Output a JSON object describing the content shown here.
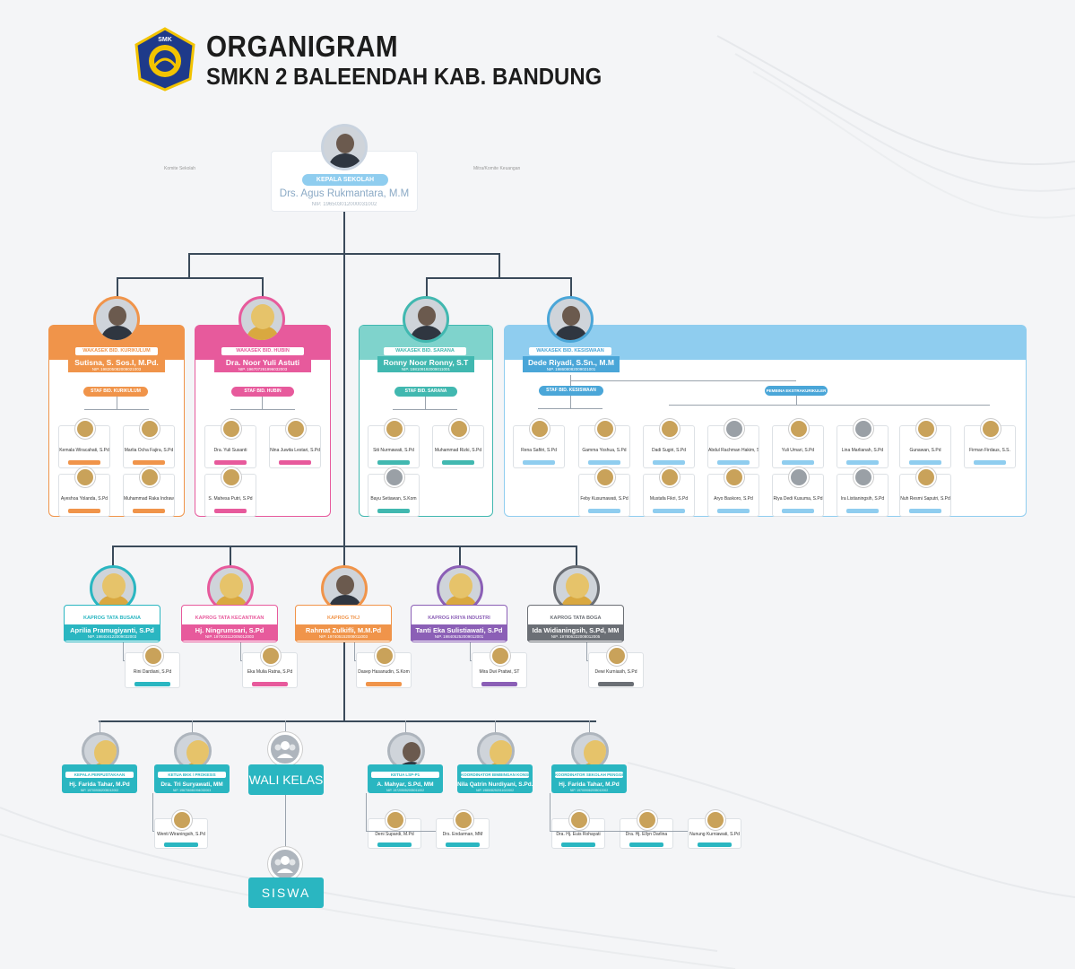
{
  "header": {
    "title": "ORGANIGRAM",
    "subtitle": "SMKN 2 BALEENDAH KAB. BANDUNG",
    "logo_text": "SMK"
  },
  "colors": {
    "orange": "#f0944a",
    "pink": "#e75a9c",
    "teal": "#41b8b0",
    "blue": "#4aa6d8",
    "lightblue": "#8fcdef",
    "purple": "#8b5fb6",
    "gray": "#6b6f75",
    "cyan": "#2ab6c1",
    "dark": "#3a4a5a"
  },
  "kepala": {
    "role": "KEPALA SEKOLAH",
    "name": "Drs. Agus Rukmantara, M.M",
    "nip": "NIP. 196503012000031002",
    "left_label": "Komite Sekolah",
    "right_label": "Mitra/Komite Keuangan"
  },
  "wakasek": [
    {
      "role": "WAKASEK BID. KURIKULUM",
      "name": "Sutisna, S. Sos.I, M.Pd.",
      "nip": "NIP. 198205082009021003",
      "staf": "STAF BID. KURIKULUM",
      "members": [
        {
          "name": "Kemala Wiracahati, S.Pd"
        },
        {
          "name": "Marlia Ocha Fajira, S.Pd"
        },
        {
          "name": "Ayeshoa Yolanda, S.Pd"
        },
        {
          "name": "Muhammad Raka Indrawan"
        }
      ]
    },
    {
      "role": "WAKASEK BID. HUBIN",
      "name": "Dra. Noor Yuli Astuti",
      "nip": "NIP. 196707261996032003",
      "staf": "STAF BID. HUBIN",
      "members": [
        {
          "name": "Dra. Yuli Susanti"
        },
        {
          "name": "Nina Juwita Lestari, S.Pd"
        },
        {
          "name": "S. Mahesa Putri, S.Pd"
        }
      ]
    },
    {
      "role": "WAKASEK BID. SARANA",
      "name": "Ronny Noor Ronny, S.T",
      "nip": "NIP. 198109192009011001",
      "staf": "STAF BID. SARANA",
      "members": [
        {
          "name": "Siti Nurmawati, S.Pd"
        },
        {
          "name": "Muhammad Rizki, S.Pd"
        },
        {
          "name": "Bayu Setiawan, S.Kom"
        }
      ]
    },
    {
      "role": "WAKASEK BID. KESISWAAN",
      "name": "Dede Riyadi, S.Sn., M.M",
      "nip": "NIP. 198608082009021001",
      "staf": "STAF BID. KESISWAAN",
      "pembina": "PEMBINA EKSTRAKURIKULER",
      "members": [
        {
          "name": "Rena Safitri, S.Pd"
        },
        {
          "name": "Gamma Yoshua, S.Pd"
        },
        {
          "name": "Dadi Sugiri, S.Pd"
        },
        {
          "name": "Abdul Rachman Hakim, S.Pd"
        },
        {
          "name": "Yuli Umari, S.Pd"
        },
        {
          "name": "Lina Marlianah, S.Pd"
        },
        {
          "name": "Gunawan, S.Pd"
        },
        {
          "name": "Firman Firdaus, S.S."
        },
        {
          "name": "Feby Kusumawati, S.Pd"
        },
        {
          "name": "Mustafa Fikri, S.Pd"
        },
        {
          "name": "Aryo Baskoro, S.Pd"
        },
        {
          "name": "Riya Dedi Kusuma, S.Pd"
        },
        {
          "name": "Ira Listianingsih, S.Pd"
        },
        {
          "name": "Nuh Resmi Saputri, S.Pd"
        }
      ]
    }
  ],
  "kaprog": [
    {
      "role": "KAPROG TATA BUSANA",
      "name": "Aprilia Pramugiyanti, S.Pd",
      "nip": "NIP. 198404122009032003",
      "member": "Rini Dardiani, S.Pd"
    },
    {
      "role": "KAPROG TATA KECANTIKAN",
      "name": "Hj. Ningrumsari, S.Pd",
      "nip": "NIP. 197003112005012003",
      "member": "Eka Mulia Ratna, S.Pd"
    },
    {
      "role": "KAPROG TKJ",
      "name": "Rahmat Zulkifli, M.M.Pd",
      "nip": "NIP. 197405152008011003",
      "member": "Dasep Hasanudin, S.Kom"
    },
    {
      "role": "KAPROG KRIYA INDUSTRI",
      "name": "Tanti Eka Sulistiawati, S.Pd",
      "nip": "NIP. 198405252009012001",
      "member": "Mira Dwi Pratiwi, ST"
    },
    {
      "role": "KAPROG TATA BOGA",
      "name": "Ida Widianingsih, S.Pd, MM",
      "nip": "NIP. 197806222008012005",
      "member": "Dewi Kurniasih, S.Pd"
    }
  ],
  "bottom": [
    {
      "role": "KEPALA PERPUSTAKAAN",
      "name": "Hj. Farida Tahar, M.Pd",
      "nip": "NIP. 197009062005012002"
    },
    {
      "role": "KETUA BKK / PROKESIS",
      "name": "Dra. Tri Suryawati, MM",
      "nip": "NIP. 196706081994032003",
      "members": [
        "Wenti Wiraningsih, S.Pd"
      ]
    },
    {
      "role": "KETUA LSP-P1",
      "name": "A. Mahyar, S.Pd, MM",
      "nip": "NIP. 197205052005011002",
      "members": [
        "Deni Supardi, M.Pd",
        "Drs. Endarman, MM"
      ]
    },
    {
      "role": "KOORDINATOR BIMBINGAN KONSELING",
      "name": "Nila Qatrin Nurdiyani, S.Pd. Gr",
      "nip": "NIP. 198508252011022002"
    },
    {
      "role": "KOORDINATOR SEKOLAH PENGGERAK",
      "name": "Hj. Farida Tahar, M.Pd",
      "nip": "NIP. 197009062005012002",
      "members": [
        "Dra. Hj. Euis Rohayati",
        "Dra. Hj. Ellyn Darlina",
        "Nunung Kurniawati, S.Pd"
      ]
    }
  ],
  "wali_kelas": "WALI KELAS",
  "siswa": "SISWA"
}
